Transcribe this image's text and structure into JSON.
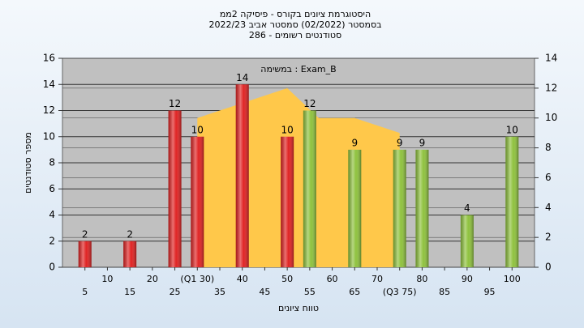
{
  "chart_data": {
    "type": "bar",
    "title_lines": [
      "היסטוגרמת ציונים בקורס - פיסיקה 2ממ",
      "בסמסטר (02/2022) סמסטר אביב 2022/23",
      "סטודנטים רשומים - 286"
    ],
    "annotation": "במשימה : Exam_B",
    "ylabel": "מספר סטודנטים",
    "xlabel": "טווח ציונים",
    "x": [
      5,
      15,
      25,
      30,
      40,
      50,
      55,
      65,
      75,
      80,
      90,
      100
    ],
    "values": [
      2,
      2,
      12,
      10,
      14,
      10,
      12,
      9,
      9,
      9,
      4,
      10
    ],
    "colors": [
      "#e02424",
      "#e02424",
      "#e02424",
      "#e02424",
      "#e02424",
      "#e02424",
      "#8fc23e",
      "#8fc23e",
      "#8fc23e",
      "#8fc23e",
      "#8fc23e",
      "#8fc23e"
    ],
    "area": {
      "x": [
        30,
        50,
        57,
        65,
        75
      ],
      "values": [
        10,
        12,
        10,
        10,
        9
      ],
      "color": "#ffc84a",
      "axis": "y2"
    },
    "xlim": [
      0,
      105
    ],
    "xticks": [
      5,
      10,
      15,
      20,
      25,
      {
        "value": 30,
        "label": "(Q1 30)"
      },
      35,
      40,
      45,
      50,
      55,
      60,
      65,
      70,
      {
        "value": 75,
        "label": "(Q3 75)"
      },
      80,
      85,
      90,
      95,
      100
    ],
    "ylim": [
      0,
      16
    ],
    "yticks": [
      0,
      2,
      4,
      6,
      8,
      10,
      12,
      14,
      16
    ],
    "y2lim": [
      0,
      14
    ],
    "y2ticks": [
      0,
      2,
      4,
      6,
      8,
      10,
      12,
      14
    ],
    "grid": true
  }
}
